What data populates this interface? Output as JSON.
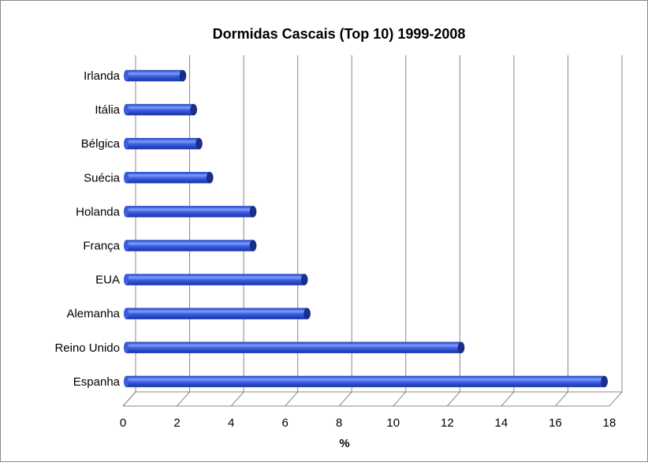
{
  "chart_data": {
    "type": "bar",
    "orientation": "horizontal",
    "title": "Dormidas Cascais (Top 10) 1999-2008",
    "categories": [
      "Irlanda",
      "Itália",
      "Bélgica",
      "Suécia",
      "Holanda",
      "França",
      "EUA",
      "Alemanha",
      "Reino Unido",
      "Espanha"
    ],
    "values": [
      2.1,
      2.5,
      2.7,
      3.1,
      4.7,
      4.7,
      6.6,
      6.7,
      12.4,
      17.7
    ],
    "color": "#3a5ee0",
    "x_label": "%",
    "xlim": [
      0,
      18
    ],
    "xticks": [
      0,
      2,
      4,
      6,
      8,
      10,
      12,
      14,
      16,
      18
    ],
    "grid": true
  }
}
